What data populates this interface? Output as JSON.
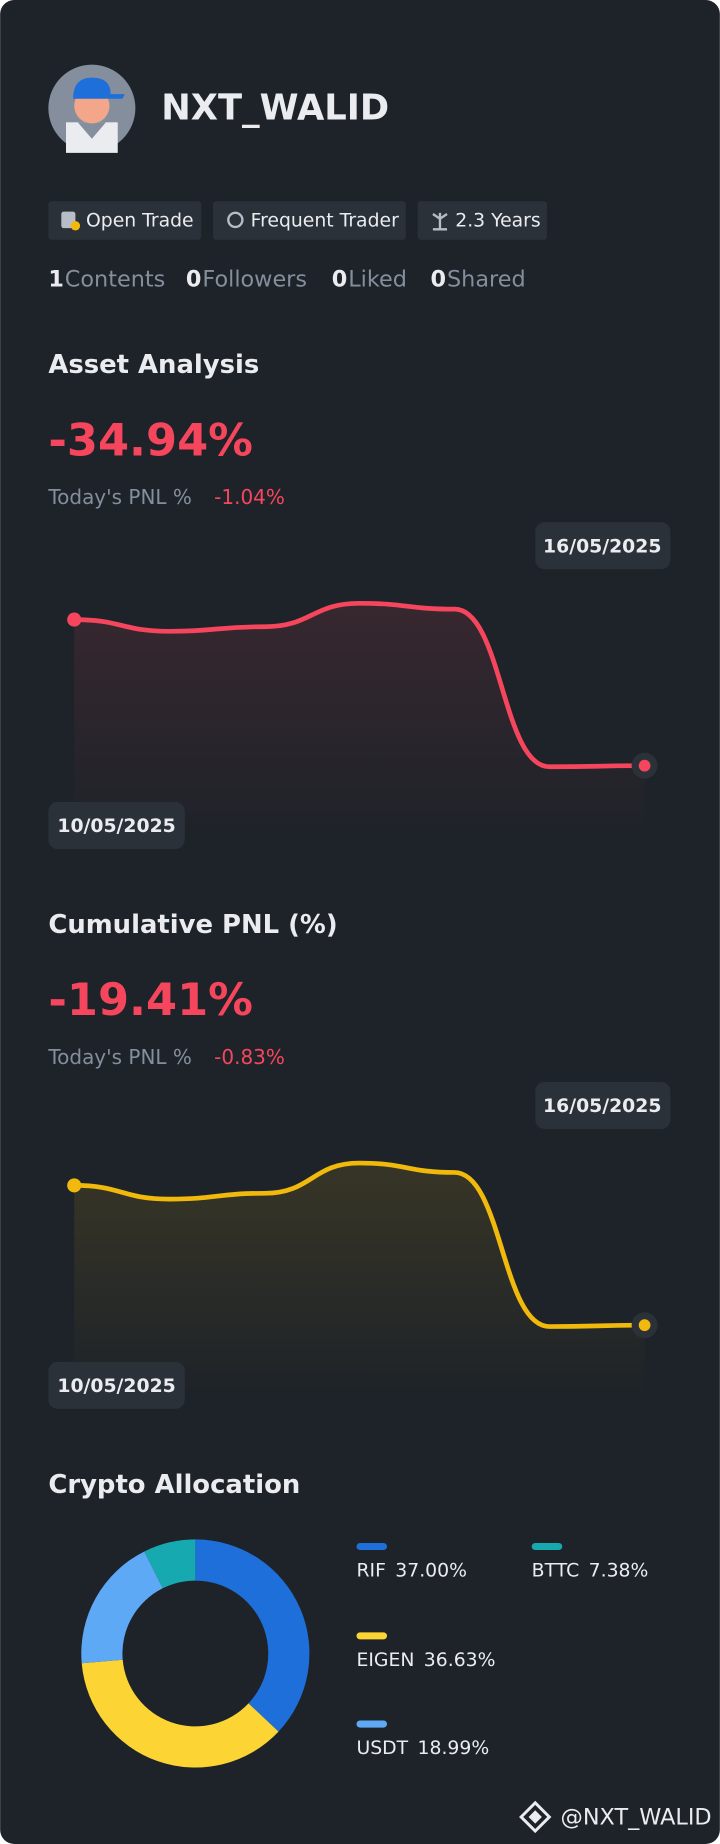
{
  "profile": {
    "name": "NXT_WALID",
    "badges": [
      "Open Trade",
      "Frequent Trader",
      "2.3 Years"
    ],
    "stats": [
      {
        "value": 1,
        "label": "Contents"
      },
      {
        "value": 0,
        "label": "Followers"
      },
      {
        "value": 0,
        "label": "Liked"
      },
      {
        "value": 0,
        "label": "Shared"
      }
    ]
  },
  "chart_data": [
    {
      "type": "line",
      "title": "Asset Analysis",
      "headline": "-34.94%",
      "today_label": "Today's PNL %",
      "today_value": "-1.04%",
      "x": [
        "10/05/2025",
        null,
        null,
        null,
        null,
        null,
        "16/05/2025"
      ],
      "series": [
        {
          "color": "#F6465D",
          "values": [
            0,
            -2.8,
            -1.7,
            3.9,
            2.5,
            -35.2,
            -34.94
          ]
        }
      ]
    },
    {
      "type": "line",
      "title": "Cumulative PNL (%)",
      "headline": "-19.41%",
      "today_label": "Today's PNL %",
      "today_value": "-0.83%",
      "x": [
        "10/05/2025",
        null,
        null,
        null,
        null,
        null,
        "16/05/2025"
      ],
      "series": [
        {
          "color": "#F0B90B",
          "values": [
            0,
            -1.9,
            -1.1,
            3.1,
            1.8,
            -19.6,
            -19.41
          ]
        }
      ]
    },
    {
      "type": "pie",
      "title": "Crypto Allocation",
      "categories": [
        "RIF",
        "EIGEN",
        "USDT",
        "BTTC"
      ],
      "values": [
        37.0,
        36.63,
        18.99,
        7.38
      ],
      "value_labels": [
        "37.00%",
        "36.63%",
        "18.99%",
        "7.38%"
      ],
      "colors": [
        "#1E6FD9",
        "#FCD535",
        "#5DA9F6",
        "#16A9B0"
      ]
    }
  ],
  "footer": "@NXT_WALID"
}
